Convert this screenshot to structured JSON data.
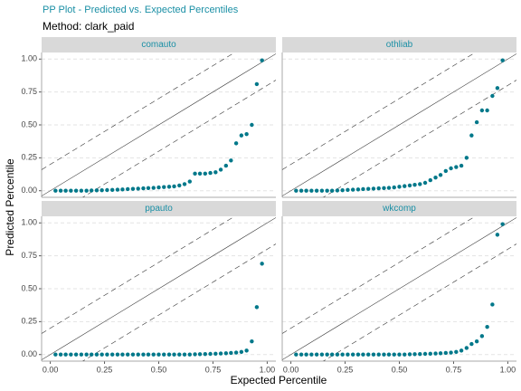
{
  "title": "PP Plot - Predicted vs. Expected Percentiles",
  "subtitle": "Method: clark_paid",
  "x_label": "Expected Percentile",
  "y_label": "Predicted Percentile",
  "xlim": [
    -0.04,
    1.04
  ],
  "ylim": [
    -0.05,
    1.05
  ],
  "xticks": [
    {
      "value": 0,
      "label": "0.00"
    },
    {
      "value": 0.25,
      "label": "0.25"
    },
    {
      "value": 0.5,
      "label": "0.50"
    },
    {
      "value": 0.75,
      "label": "0.75"
    },
    {
      "value": 1,
      "label": "1.00"
    }
  ],
  "yticks": [
    {
      "value": 0,
      "label": "0.00"
    },
    {
      "value": 0.25,
      "label": "0.25"
    },
    {
      "value": 0.5,
      "label": "0.50"
    },
    {
      "value": 0.75,
      "label": "0.75"
    },
    {
      "value": 1,
      "label": "1.00"
    }
  ],
  "grid": true,
  "color": "#00788a",
  "reference_band": 0.2,
  "chart_data": [
    {
      "type": "scatter",
      "title": "comauto",
      "x": [
        0.024,
        0.048,
        0.071,
        0.095,
        0.119,
        0.143,
        0.167,
        0.19,
        0.214,
        0.238,
        0.262,
        0.286,
        0.31,
        0.333,
        0.357,
        0.381,
        0.405,
        0.429,
        0.452,
        0.476,
        0.5,
        0.524,
        0.548,
        0.571,
        0.595,
        0.619,
        0.643,
        0.667,
        0.69,
        0.714,
        0.738,
        0.762,
        0.786,
        0.81,
        0.833,
        0.857,
        0.881,
        0.905,
        0.929,
        0.952,
        0.976
      ],
      "values": [
        0,
        0,
        0,
        0,
        0,
        0,
        0,
        0.002,
        0.003,
        0.004,
        0.005,
        0.006,
        0.008,
        0.01,
        0.012,
        0.014,
        0.016,
        0.018,
        0.02,
        0.022,
        0.025,
        0.028,
        0.03,
        0.033,
        0.04,
        0.05,
        0.07,
        0.13,
        0.13,
        0.13,
        0.135,
        0.14,
        0.16,
        0.19,
        0.23,
        0.36,
        0.42,
        0.43,
        0.5,
        0.81,
        0.99
      ]
    },
    {
      "type": "scatter",
      "title": "othliab",
      "x": [
        0.024,
        0.048,
        0.071,
        0.095,
        0.119,
        0.143,
        0.167,
        0.19,
        0.214,
        0.238,
        0.262,
        0.286,
        0.31,
        0.333,
        0.357,
        0.381,
        0.405,
        0.429,
        0.452,
        0.476,
        0.5,
        0.524,
        0.548,
        0.571,
        0.595,
        0.619,
        0.643,
        0.667,
        0.69,
        0.714,
        0.738,
        0.762,
        0.786,
        0.81,
        0.833,
        0.857,
        0.881,
        0.905,
        0.929,
        0.952,
        0.976
      ],
      "values": [
        0,
        0,
        0,
        0,
        0,
        0,
        0,
        0,
        0.002,
        0.004,
        0.006,
        0.008,
        0.01,
        0.012,
        0.014,
        0.016,
        0.018,
        0.02,
        0.022,
        0.025,
        0.03,
        0.035,
        0.04,
        0.045,
        0.05,
        0.06,
        0.08,
        0.1,
        0.12,
        0.15,
        0.17,
        0.18,
        0.19,
        0.25,
        0.42,
        0.52,
        0.61,
        0.61,
        0.72,
        0.78,
        0.99
      ]
    },
    {
      "type": "scatter",
      "title": "ppauto",
      "x": [
        0.024,
        0.048,
        0.071,
        0.095,
        0.119,
        0.143,
        0.167,
        0.19,
        0.214,
        0.238,
        0.262,
        0.286,
        0.31,
        0.333,
        0.357,
        0.381,
        0.405,
        0.429,
        0.452,
        0.476,
        0.5,
        0.524,
        0.548,
        0.571,
        0.595,
        0.619,
        0.643,
        0.667,
        0.69,
        0.714,
        0.738,
        0.762,
        0.786,
        0.81,
        0.833,
        0.857,
        0.881,
        0.905,
        0.929,
        0.952,
        0.976
      ],
      "values": [
        0,
        0,
        0,
        0,
        0,
        0,
        0,
        0,
        0,
        0,
        0,
        0,
        0,
        0,
        0,
        0,
        0,
        0,
        0,
        0,
        0,
        0,
        0,
        0,
        0,
        0,
        0,
        0.002,
        0.003,
        0.004,
        0.005,
        0.006,
        0.008,
        0.01,
        0.012,
        0.015,
        0.02,
        0.03,
        0.1,
        0.36,
        0.69
      ]
    },
    {
      "type": "scatter",
      "title": "wkcomp",
      "x": [
        0.024,
        0.048,
        0.071,
        0.095,
        0.119,
        0.143,
        0.167,
        0.19,
        0.214,
        0.238,
        0.262,
        0.286,
        0.31,
        0.333,
        0.357,
        0.381,
        0.405,
        0.429,
        0.452,
        0.476,
        0.5,
        0.524,
        0.548,
        0.571,
        0.595,
        0.619,
        0.643,
        0.667,
        0.69,
        0.714,
        0.738,
        0.762,
        0.786,
        0.81,
        0.833,
        0.857,
        0.881,
        0.905,
        0.929,
        0.952,
        0.976
      ],
      "values": [
        0,
        0,
        0,
        0,
        0,
        0,
        0,
        0,
        0,
        0,
        0,
        0,
        0,
        0,
        0,
        0,
        0,
        0,
        0,
        0,
        0,
        0,
        0.002,
        0.003,
        0.004,
        0.005,
        0.006,
        0.008,
        0.01,
        0.012,
        0.015,
        0.02,
        0.03,
        0.05,
        0.08,
        0.1,
        0.14,
        0.21,
        0.38,
        0.91,
        0.99
      ]
    }
  ]
}
